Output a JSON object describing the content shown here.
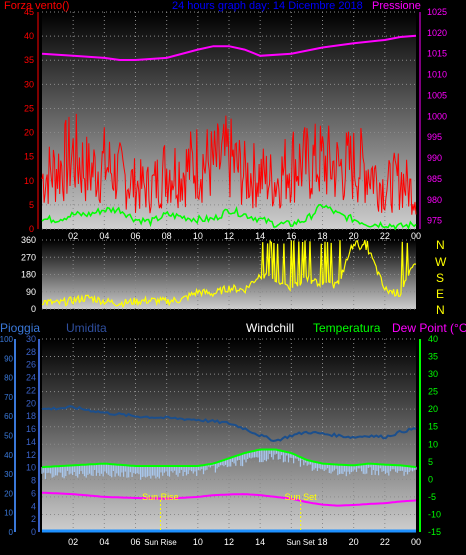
{
  "colors": {
    "background": "#000000",
    "wind": "#ff0000",
    "wind_gust": "#ff0000",
    "wind_avg": "#00ff00",
    "pressure": "#ff00ff",
    "direction": "#ffff00",
    "rain": "#1e90ff",
    "humidity": "#2f4f9f",
    "humidity_line": "#1c4f8c",
    "windchill": "#ffffff",
    "temperature": "#00ff00",
    "dewpoint": "#ff00ff",
    "sun_marker": "#ffff00",
    "left_axis_top": "#ff0000",
    "right_axis_top": "#ff00ff",
    "title": "#0000ff",
    "axis_text": "#ffffff",
    "rain_axis": "#3a78d8",
    "humidity_axis": "#3a62c8",
    "temp_axis": "#00ff00"
  },
  "top_panel": {
    "left_label": "Forza vento()",
    "title": "24 hours graph day: 14 Dicembre 2018",
    "right_label": "Pressione"
  },
  "bottom_header": {
    "rain": "Pioggia",
    "humidity": "Umidita",
    "windchill": "Windchill",
    "temperature": "Temperatura",
    "dewpoint": "Dew Point (°C)"
  },
  "direction_letters": [
    "N",
    "W",
    "S",
    "E",
    "N"
  ],
  "x_ticks": [
    "02",
    "04",
    "06",
    "08",
    "10",
    "12",
    "14",
    "16",
    "18",
    "20",
    "22",
    "00"
  ],
  "x_ticks_bottom": [
    "02",
    "04",
    "06",
    "Sun Rise",
    "10",
    "12",
    "14",
    "Sun Set",
    "18",
    "20",
    "22",
    "00"
  ],
  "sun_labels": {
    "rise": "Sun Rise",
    "set": "Sun Set"
  },
  "chart_data": [
    {
      "type": "line",
      "name": "wind-pressure",
      "x_unit": "hour",
      "xlim": [
        0,
        24
      ],
      "left_axis": {
        "label": "Forza vento()",
        "ylim": [
          0,
          45
        ],
        "ticks": [
          0,
          5,
          10,
          15,
          20,
          25,
          30,
          35,
          40,
          45
        ]
      },
      "right_axis": {
        "label": "Pressione",
        "ylim": [
          973,
          1025
        ],
        "ticks": [
          975,
          980,
          985,
          990,
          995,
          1000,
          1005,
          1010,
          1015,
          1020,
          1025
        ]
      },
      "series": [
        {
          "name": "Pressione",
          "axis": "right",
          "x": [
            0,
            2,
            4,
            5,
            6,
            8,
            10,
            11,
            12,
            13,
            14,
            16,
            18,
            20,
            22,
            23,
            24
          ],
          "values": [
            1015,
            1014.5,
            1014,
            1013.5,
            1013.5,
            1014,
            1016,
            1016.8,
            1016.8,
            1016,
            1014.5,
            1015,
            1016.5,
            1017.5,
            1018.3,
            1019,
            1019.3
          ]
        },
        {
          "name": "Gust",
          "axis": "left",
          "x": [
            0,
            1,
            2,
            3,
            4,
            5,
            6,
            7,
            8,
            9,
            10,
            11,
            12,
            13,
            14,
            15,
            16,
            17,
            18,
            19,
            20,
            21,
            22,
            23,
            24
          ],
          "values": [
            15,
            18,
            22,
            17,
            19,
            16,
            13,
            12,
            18,
            17,
            20,
            19,
            21,
            16,
            16,
            14,
            20,
            19,
            20,
            18,
            19,
            18,
            12,
            15,
            10
          ]
        },
        {
          "name": "Average",
          "axis": "left",
          "x": [
            0,
            1,
            2,
            3,
            4,
            5,
            6,
            7,
            8,
            9,
            10,
            11,
            12,
            13,
            14,
            15,
            16,
            17,
            18,
            19,
            20,
            21,
            22,
            23,
            24
          ],
          "values": [
            2,
            2,
            3,
            3,
            4,
            4,
            2,
            1.5,
            3,
            2.5,
            2,
            2,
            4,
            3,
            2,
            1,
            1,
            2,
            5,
            3,
            2,
            1,
            1,
            0.5,
            1
          ]
        }
      ]
    },
    {
      "type": "line",
      "name": "wind-direction",
      "x_unit": "hour",
      "xlim": [
        0,
        24
      ],
      "ylim": [
        0,
        360
      ],
      "ticks": [
        0,
        90,
        180,
        270,
        360
      ],
      "ytick_labels": [
        "0",
        "90",
        "180",
        "270",
        "360"
      ],
      "series": [
        {
          "name": "Direzione",
          "x": [
            0,
            1,
            2,
            3,
            4,
            5,
            6,
            7,
            8,
            9,
            10,
            11,
            12,
            13,
            14,
            15,
            16,
            17,
            18,
            19,
            20,
            21,
            22,
            23,
            24
          ],
          "values": [
            40,
            30,
            45,
            60,
            40,
            30,
            40,
            45,
            40,
            50,
            90,
            80,
            110,
            100,
            180,
            150,
            110,
            160,
            120,
            130,
            350,
            300,
            100,
            80,
            250
          ]
        }
      ]
    },
    {
      "type": "line",
      "name": "temperature-humidity-rain",
      "x_unit": "hour",
      "xlim": [
        0,
        24
      ],
      "rain_axis": {
        "label": "Pioggia",
        "ylim": [
          0,
          100
        ],
        "ticks": [
          0,
          10,
          20,
          30,
          40,
          50,
          60,
          70,
          80,
          90,
          100
        ]
      },
      "humidity_axis": {
        "label": "Umidita",
        "ylim": [
          0,
          30
        ],
        "ticks": [
          0,
          2,
          4,
          6,
          8,
          10,
          12,
          14,
          16,
          18,
          20,
          22,
          24,
          26,
          28,
          30
        ]
      },
      "temp_axis": {
        "label": "Temperatura",
        "ylim": [
          -15,
          40
        ],
        "ticks": [
          -15,
          -10,
          -5,
          0,
          5,
          10,
          15,
          20,
          25,
          30,
          35,
          40
        ]
      },
      "sun_rise_hour": 7.6,
      "sun_set_hour": 16.6,
      "series": [
        {
          "name": "Umidita",
          "axis": "temp",
          "x": [
            0,
            2,
            4,
            6,
            8,
            10,
            11,
            12,
            13,
            14,
            15,
            16,
            17,
            18,
            19,
            20,
            21,
            22,
            23,
            24
          ],
          "values": [
            20,
            20.5,
            19,
            18,
            17.5,
            17,
            16.5,
            16,
            14.5,
            12.5,
            11,
            12.5,
            13.5,
            13,
            12.5,
            12,
            12.5,
            12,
            13.5,
            14.5
          ]
        },
        {
          "name": "Windchill",
          "axis": "temp",
          "x": [
            0,
            2,
            4,
            6,
            8,
            10,
            11,
            12,
            13,
            14,
            15,
            16,
            17,
            18,
            19,
            20,
            21,
            22,
            23,
            24
          ],
          "values": [
            2,
            2.5,
            2.8,
            2,
            2.5,
            3,
            4,
            5,
            6,
            7,
            7.5,
            6.5,
            5,
            3.5,
            3,
            3,
            3.5,
            3,
            3,
            3
          ]
        },
        {
          "name": "Temperatura",
          "axis": "temp",
          "x": [
            0,
            2,
            4,
            6,
            8,
            10,
            11,
            12,
            13,
            14,
            15,
            16,
            17,
            18,
            19,
            20,
            21,
            22,
            23,
            24
          ],
          "values": [
            3.5,
            4,
            4.5,
            3.8,
            3.8,
            3.8,
            4.5,
            6,
            7.5,
            8.5,
            8.5,
            7.5,
            5.5,
            4.5,
            4.2,
            4,
            4.5,
            4.2,
            4,
            3.5
          ]
        },
        {
          "name": "Dew Point",
          "axis": "temp",
          "x": [
            0,
            2,
            4,
            6,
            8,
            10,
            11,
            12,
            13,
            14,
            15,
            16,
            17,
            18,
            19,
            20,
            21,
            22,
            23,
            24
          ],
          "values": [
            -3.8,
            -4.2,
            -5,
            -5.3,
            -5.5,
            -5,
            -4.5,
            -4.3,
            -4.2,
            -4.5,
            -5,
            -5.5,
            -6.5,
            -7.2,
            -7.5,
            -7.3,
            -7,
            -6.8,
            -6.3,
            -6
          ]
        },
        {
          "name": "Pioggia",
          "axis": "rain",
          "x": [
            0,
            24
          ],
          "values": [
            0,
            0
          ]
        }
      ]
    }
  ]
}
